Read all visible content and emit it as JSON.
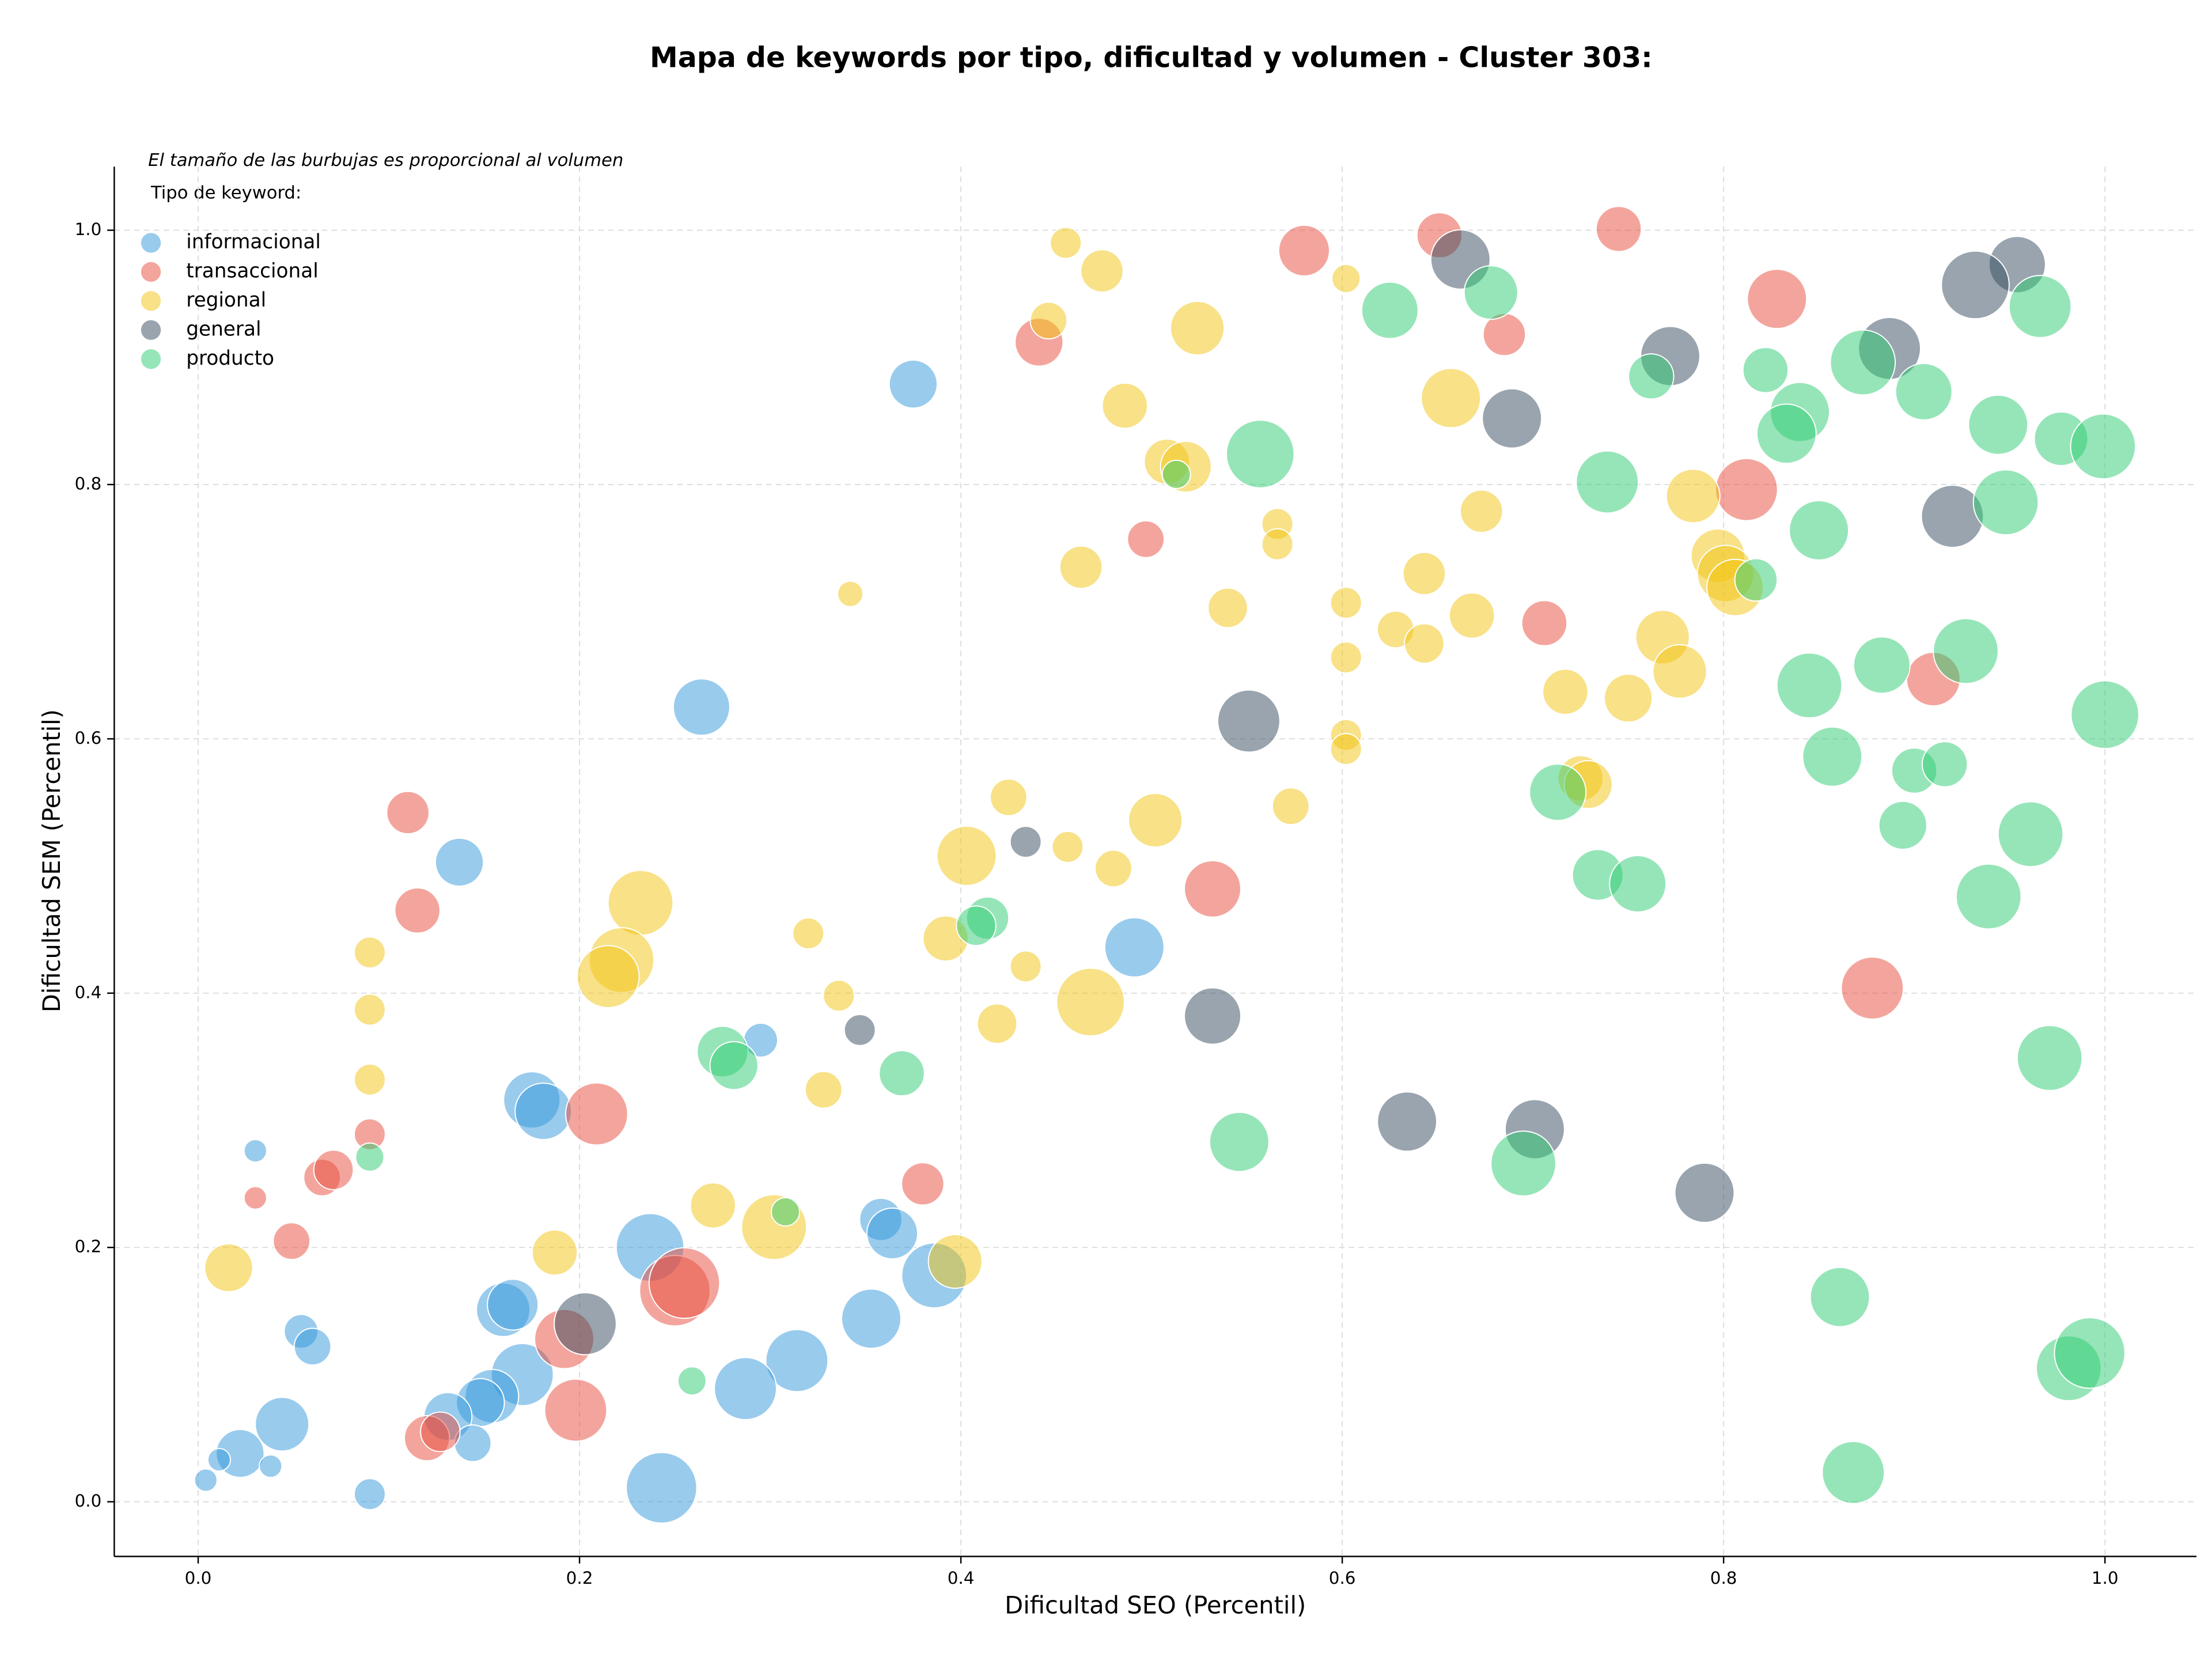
{
  "chart_data": {
    "type": "scatter",
    "title": "Mapa de keywords por tipo, dificultad y volumen - Cluster 303:",
    "note": "El tamaño de las burbujas es proporcional al volumen",
    "legend_title": "Tipo de keyword:",
    "x_label": "Dificultad SEO (Percentil)",
    "y_label": "Dificultad SEM (Percentil)",
    "xlim": [
      -0.044,
      1.048
    ],
    "ylim": [
      -0.043,
      1.05
    ],
    "xticks": [
      {
        "value": 0,
        "label": "0.0"
      },
      0.2,
      0.4,
      0.6,
      0.8,
      {
        "value": 1,
        "label": "1.0"
      }
    ],
    "yticks": [
      {
        "value": 0,
        "label": "0.0"
      },
      0.2,
      0.4,
      0.6,
      0.8,
      {
        "value": 1,
        "label": "1.0"
      }
    ],
    "grid": true,
    "legend": "upper left",
    "series": [
      {
        "name": "informacional",
        "color": "#3498db",
        "x": [
          0.375,
          0.264,
          0.137,
          0.491,
          0.175,
          0.181,
          0.295,
          0.03,
          0.358,
          0.364,
          0.237,
          0.386,
          0.16,
          0.165,
          0.054,
          0.06,
          0.353,
          0.314,
          0.17,
          0.287,
          0.154,
          0.148,
          0.131,
          0.044,
          0.144,
          0.022,
          0.011,
          0.038,
          0.004,
          0.09,
          0.243
        ],
        "values": [
          0.879,
          0.625,
          0.503,
          0.436,
          0.316,
          0.307,
          0.363,
          0.276,
          0.222,
          0.211,
          0.2,
          0.178,
          0.151,
          0.155,
          0.134,
          0.122,
          0.144,
          0.111,
          0.1,
          0.089,
          0.083,
          0.078,
          0.067,
          0.061,
          0.046,
          0.038,
          0.033,
          0.028,
          0.017,
          0.006,
          0.011
        ],
        "sizes": [
          289,
          400,
          289,
          441,
          400,
          400,
          144,
          64,
          225,
          324,
          576,
          529,
          361,
          324,
          144,
          169,
          441,
          484,
          484,
          484,
          361,
          289,
          289,
          361,
          169,
          289,
          64,
          64,
          64,
          121,
          625
        ]
      },
      {
        "name": "transaccional",
        "color": "#e74c3c",
        "x": [
          0.58,
          0.651,
          0.745,
          0.441,
          0.685,
          0.828,
          0.812,
          0.497,
          0.706,
          0.91,
          0.11,
          0.115,
          0.532,
          0.878,
          0.209,
          0.09,
          0.065,
          0.071,
          0.38,
          0.03,
          0.049,
          0.25,
          0.255,
          0.192,
          0.198,
          0.12,
          0.127
        ],
        "values": [
          0.984,
          0.996,
          1.001,
          0.912,
          0.918,
          0.946,
          0.796,
          0.757,
          0.691,
          0.647,
          0.542,
          0.465,
          0.482,
          0.404,
          0.305,
          0.289,
          0.255,
          0.261,
          0.25,
          0.239,
          0.205,
          0.166,
          0.172,
          0.128,
          0.072,
          0.05,
          0.055
        ],
        "sizes": [
          324,
          256,
          256,
          289,
          225,
          441,
          484,
          169,
          256,
          361,
          225,
          256,
          400,
          484,
          484,
          121,
          169,
          196,
          225,
          64,
          169,
          625,
          625,
          441,
          484,
          256,
          196
        ]
      },
      {
        "name": "regional",
        "color": "#f1c40f",
        "x": [
          0.455,
          0.474,
          0.446,
          0.524,
          0.602,
          0.657,
          0.486,
          0.508,
          0.518,
          0.673,
          0.784,
          0.566,
          0.566,
          0.463,
          0.643,
          0.797,
          0.801,
          0.806,
          0.342,
          0.602,
          0.54,
          0.668,
          0.628,
          0.643,
          0.768,
          0.777,
          0.602,
          0.717,
          0.75,
          0.602,
          0.602,
          0.725,
          0.729,
          0.573,
          0.425,
          0.502,
          0.403,
          0.456,
          0.48,
          0.232,
          0.09,
          0.32,
          0.392,
          0.222,
          0.215,
          0.434,
          0.09,
          0.336,
          0.468,
          0.419,
          0.09,
          0.328,
          0.27,
          0.187,
          0.302,
          0.397,
          0.016
        ],
        "values": [
          0.99,
          0.968,
          0.929,
          0.923,
          0.962,
          0.868,
          0.862,
          0.818,
          0.814,
          0.779,
          0.791,
          0.769,
          0.753,
          0.735,
          0.73,
          0.744,
          0.73,
          0.719,
          0.714,
          0.707,
          0.703,
          0.697,
          0.686,
          0.675,
          0.68,
          0.653,
          0.664,
          0.637,
          0.632,
          0.603,
          0.592,
          0.569,
          0.564,
          0.547,
          0.554,
          0.536,
          0.508,
          0.515,
          0.498,
          0.471,
          0.432,
          0.447,
          0.443,
          0.426,
          0.413,
          0.421,
          0.387,
          0.398,
          0.393,
          0.376,
          0.332,
          0.324,
          0.233,
          0.196,
          0.216,
          0.189,
          0.184
        ],
        "sizes": [
          121,
          225,
          169,
          361,
          100,
          441,
          256,
          256,
          324,
          225,
          361,
          121,
          121,
          225,
          225,
          361,
          400,
          400,
          81,
          121,
          196,
          256,
          169,
          196,
          361,
          361,
          121,
          256,
          289,
          121,
          121,
          256,
          289,
          169,
          169,
          361,
          441,
          121,
          169,
          529,
          121,
          121,
          256,
          529,
          484,
          121,
          121,
          121,
          576,
          196,
          121,
          169,
          256,
          256,
          529,
          361,
          289
        ]
      },
      {
        "name": "general",
        "color": "#34495e",
        "x": [
          0.662,
          0.954,
          0.932,
          0.772,
          0.887,
          0.689,
          0.92,
          0.551,
          0.434,
          0.347,
          0.532,
          0.634,
          0.701,
          0.79,
          0.203
        ],
        "values": [
          0.977,
          0.973,
          0.957,
          0.901,
          0.907,
          0.852,
          0.775,
          0.614,
          0.519,
          0.371,
          0.382,
          0.299,
          0.293,
          0.243,
          0.14
        ],
        "sizes": [
          441,
          400,
          576,
          441,
          484,
          441,
          484,
          484,
          121,
          121,
          400,
          441,
          441,
          441,
          484
        ]
      },
      {
        "name": "producto",
        "color": "#2ecc71",
        "x": [
          0.625,
          0.678,
          0.966,
          0.822,
          0.762,
          0.873,
          0.905,
          0.84,
          0.833,
          0.557,
          0.944,
          0.977,
          0.999,
          0.739,
          0.948,
          0.513,
          0.85,
          0.817,
          0.927,
          0.845,
          0.883,
          1.0,
          0.857,
          0.713,
          0.9,
          0.916,
          0.894,
          0.961,
          0.734,
          0.755,
          0.939,
          0.414,
          0.408,
          0.275,
          0.281,
          0.369,
          0.971,
          0.546,
          0.695,
          0.09,
          0.308,
          0.861,
          0.981,
          0.992,
          0.259,
          0.868
        ],
        "values": [
          0.937,
          0.951,
          0.94,
          0.89,
          0.885,
          0.896,
          0.873,
          0.857,
          0.84,
          0.824,
          0.847,
          0.836,
          0.83,
          0.802,
          0.786,
          0.808,
          0.764,
          0.725,
          0.669,
          0.642,
          0.658,
          0.619,
          0.586,
          0.558,
          0.575,
          0.58,
          0.532,
          0.525,
          0.493,
          0.486,
          0.476,
          0.459,
          0.453,
          0.354,
          0.343,
          0.337,
          0.349,
          0.283,
          0.266,
          0.271,
          0.228,
          0.161,
          0.105,
          0.117,
          0.095,
          0.023
        ],
        "sizes": [
          400,
          361,
          484,
          256,
          256,
          529,
          400,
          441,
          441,
          576,
          441,
          361,
          529,
          484,
          529,
          100,
          441,
          225,
          529,
          529,
          400,
          576,
          441,
          400,
          256,
          256,
          289,
          529,
          324,
          400,
          529,
          225,
          196,
          324,
          289,
          256,
          529,
          441,
          529,
          100,
          100,
          441,
          529,
          625,
          100,
          484
        ]
      }
    ]
  }
}
